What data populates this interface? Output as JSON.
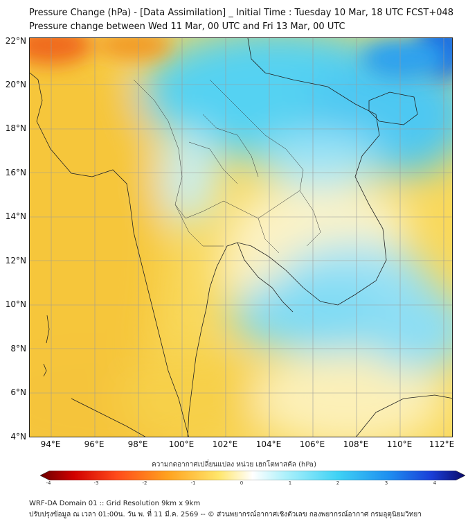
{
  "title_line1": "Pressure Change (hPa) - [Data Assimilation] _ Initial Time : Tuesday 10 Mar, 18 UTC FCST+048",
  "title_line2": "Pressure change between Wed 11 Mar, 00 UTC and Fri 13 Mar, 00 UTC",
  "lat_labels": [
    "22°N",
    "20°N",
    "18°N",
    "16°N",
    "14°N",
    "12°N",
    "10°N",
    "8°N",
    "6°N",
    "4°N"
  ],
  "lon_labels": [
    "94°E",
    "96°E",
    "98°E",
    "100°E",
    "102°E",
    "104°E",
    "106°E",
    "108°E",
    "110°E",
    "112°E"
  ],
  "colorbar": {
    "title": "ความกดอากาศเปลี่ยนแปลง หน่วย เฮกโตพาสคัล (hPa)",
    "ticks": [
      "-4",
      "-3",
      "-2",
      "-1",
      "0",
      "1",
      "2",
      "3",
      "4"
    ],
    "range": [
      -4,
      4
    ]
  },
  "footer_line1": "WRF-DA Domain 01 :: Grid Resolution 9km x 9km",
  "footer_line2": "ปรับปรุงข้อมูล ณ เวลา 01:00น. วัน พ. ที่ 11 มี.ค. 2569 -- © ส่วนพยากรณ์อากาศเชิงตัวเลข กองพยากรณ์อากาศ กรมอุตุนิยมวิทยา"
}
